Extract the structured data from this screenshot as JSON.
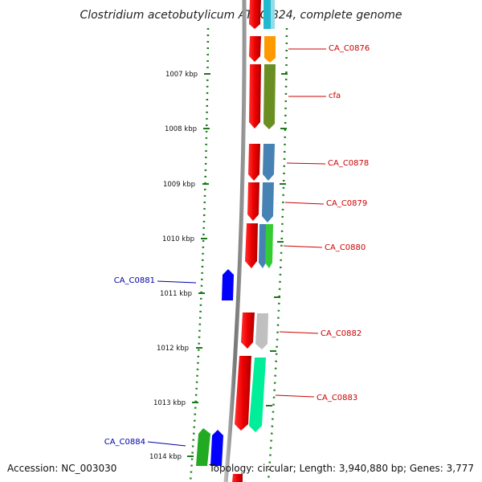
{
  "title": "Clostridium acetobutylicum ATCC 824, complete genome",
  "footer": {
    "accession": "Accession: NC_003030",
    "topology": "Topology: circular; Length: 3,940,880 bp; Genes: 3,777"
  },
  "colors": {
    "forward_label": "#cc0000",
    "reverse_label": "#0000aa",
    "backbone": "#888888",
    "ruler": "#1a7a1a"
  },
  "ticks": [
    "1007 kbp",
    "1008 kbp",
    "1009 kbp",
    "1010 kbp",
    "1011 kbp",
    "1012 kbp",
    "1013 kbp",
    "1014 kbp"
  ],
  "genes": [
    {
      "id": "top",
      "label": "",
      "strand": "+",
      "color": "#22b8cf"
    },
    {
      "id": "CA_C0876",
      "label": "CA_C0876",
      "strand": "+",
      "color": "#ff9900"
    },
    {
      "id": "cfa",
      "label": "cfa",
      "strand": "+",
      "color": "#6b8e23"
    },
    {
      "id": "CA_C0878",
      "label": "CA_C0878",
      "strand": "+",
      "color": "#4682b4"
    },
    {
      "id": "CA_C0879",
      "label": "CA_C0879",
      "strand": "+",
      "color": "#4682b4"
    },
    {
      "id": "CA_C0880",
      "label": "CA_C0880",
      "strand": "+",
      "color": "#33cc33"
    },
    {
      "id": "CA_C0881",
      "label": "CA_C0881",
      "strand": "-",
      "color": "#0000ff"
    },
    {
      "id": "CA_C0882",
      "label": "CA_C0882",
      "strand": "+",
      "color": "#c0c0c0"
    },
    {
      "id": "CA_C0883",
      "label": "CA_C0883",
      "strand": "+",
      "color": "#00ee99"
    },
    {
      "id": "CA_C0884",
      "label": "CA_C0884",
      "strand": "-",
      "color": "#22aa22"
    }
  ]
}
